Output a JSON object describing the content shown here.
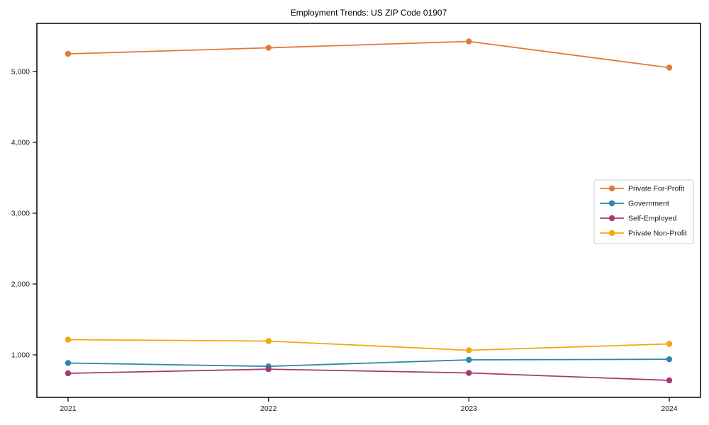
{
  "title": "Employment Trends: US ZIP Code 01907",
  "chart_data": {
    "type": "line",
    "title": "Employment Trends: US ZIP Code 01907",
    "categories": [
      "2021",
      "2022",
      "2023",
      "2024"
    ],
    "series": [
      {
        "name": "Private For-Profit",
        "color": "#E2793D",
        "values": [
          5250,
          5335,
          5425,
          5055
        ]
      },
      {
        "name": "Government",
        "color": "#2E86AB",
        "values": [
          885,
          838,
          930,
          938
        ]
      },
      {
        "name": "Self-Employed",
        "color": "#A23B72",
        "values": [
          740,
          798,
          745,
          640
        ]
      },
      {
        "name": "Private Non-Profit",
        "color": "#F3A712",
        "values": [
          1215,
          1195,
          1065,
          1155
        ]
      }
    ],
    "xlabel": "",
    "ylabel": "",
    "y_ticks": [
      1000,
      2000,
      3000,
      4000,
      5000
    ],
    "y_tick_labels": [
      "1,000",
      "2,000",
      "3,000",
      "4,000",
      "5,000"
    ],
    "ylim": [
      400,
      5680
    ],
    "grid": false,
    "legend_position": "center-right",
    "axis_color": "#000000",
    "tick_label_color": "#1a1a1a",
    "legend_border_color": "#cccccc",
    "legend_background": "#ffffff"
  }
}
